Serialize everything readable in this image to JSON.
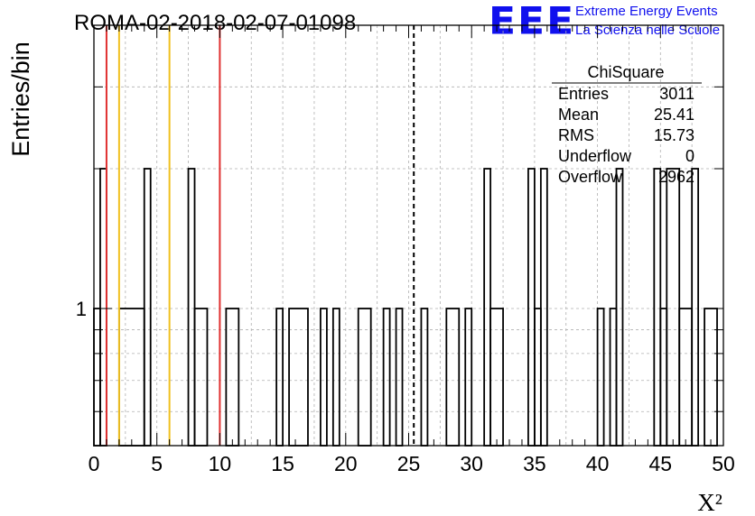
{
  "chart_data": {
    "type": "bar",
    "title": "ROMA-02-2018-02-07-01098",
    "xlabel": "X²",
    "ylabel": "Entries/bin",
    "xlim": [
      0,
      50
    ],
    "y_scale": "log",
    "y_tick_labels": [
      "1"
    ],
    "x_tick_labels": [
      "0",
      "5",
      "10",
      "15",
      "20",
      "25",
      "30",
      "35",
      "40",
      "45",
      "50"
    ],
    "bin_width": 0.5,
    "bins": [
      {
        "x0": 0.0,
        "x1": 0.5,
        "y": 1
      },
      {
        "x0": 0.5,
        "x1": 1.0,
        "y": 2
      },
      {
        "x0": 2.0,
        "x1": 4.0,
        "y": 1
      },
      {
        "x0": 4.0,
        "x1": 4.5,
        "y": 2
      },
      {
        "x0": 7.5,
        "x1": 8.0,
        "y": 2
      },
      {
        "x0": 8.0,
        "x1": 9.0,
        "y": 1
      },
      {
        "x0": 10.5,
        "x1": 11.5,
        "y": 1
      },
      {
        "x0": 14.5,
        "x1": 15.0,
        "y": 1
      },
      {
        "x0": 15.5,
        "x1": 17.0,
        "y": 1
      },
      {
        "x0": 18.0,
        "x1": 18.5,
        "y": 1
      },
      {
        "x0": 19.0,
        "x1": 19.5,
        "y": 1
      },
      {
        "x0": 21.0,
        "x1": 22.0,
        "y": 1
      },
      {
        "x0": 23.0,
        "x1": 23.5,
        "y": 1
      },
      {
        "x0": 24.0,
        "x1": 24.5,
        "y": 1
      },
      {
        "x0": 26.0,
        "x1": 26.5,
        "y": 1
      },
      {
        "x0": 28.0,
        "x1": 29.0,
        "y": 1
      },
      {
        "x0": 29.5,
        "x1": 30.0,
        "y": 1
      },
      {
        "x0": 31.0,
        "x1": 31.5,
        "y": 2
      },
      {
        "x0": 31.5,
        "x1": 32.5,
        "y": 1
      },
      {
        "x0": 34.5,
        "x1": 35.0,
        "y": 2
      },
      {
        "x0": 35.0,
        "x1": 35.5,
        "y": 1
      },
      {
        "x0": 35.5,
        "x1": 36.0,
        "y": 2
      },
      {
        "x0": 40.0,
        "x1": 40.5,
        "y": 1
      },
      {
        "x0": 41.0,
        "x1": 41.5,
        "y": 1
      },
      {
        "x0": 41.5,
        "x1": 42.0,
        "y": 2
      },
      {
        "x0": 44.5,
        "x1": 45.0,
        "y": 2
      },
      {
        "x0": 45.0,
        "x1": 45.5,
        "y": 1
      },
      {
        "x0": 45.5,
        "x1": 46.5,
        "y": 2
      },
      {
        "x0": 46.5,
        "x1": 47.5,
        "y": 1
      },
      {
        "x0": 47.5,
        "x1": 48.0,
        "y": 2
      },
      {
        "x0": 48.5,
        "x1": 49.5,
        "y": 1
      }
    ],
    "vertical_lines": [
      {
        "x": 1.0,
        "color": "#e03030",
        "style": "solid"
      },
      {
        "x": 2.0,
        "color": "#f0c020",
        "style": "solid"
      },
      {
        "x": 6.0,
        "color": "#f0c020",
        "style": "solid"
      },
      {
        "x": 10.0,
        "color": "#e03030",
        "style": "solid"
      },
      {
        "x": 25.41,
        "color": "#000000",
        "style": "dashed"
      }
    ],
    "grid": true,
    "stats_box": {
      "title": "ChiSquare",
      "rows": [
        {
          "label": "Entries",
          "value": "3011"
        },
        {
          "label": "Mean",
          "value": "25.41"
        },
        {
          "label": "RMS",
          "value": "15.73"
        },
        {
          "label": "Underflow",
          "value": "0"
        },
        {
          "label": "Overflow",
          "value": "2962"
        }
      ]
    }
  },
  "logo": {
    "mark": "EEE",
    "line1": "Extreme Energy Events",
    "line2": "La Scienza nelle Scuole"
  },
  "colors": {
    "logo": "#1010ee",
    "histogram": "#000000",
    "grid": "#b0b0b0"
  }
}
